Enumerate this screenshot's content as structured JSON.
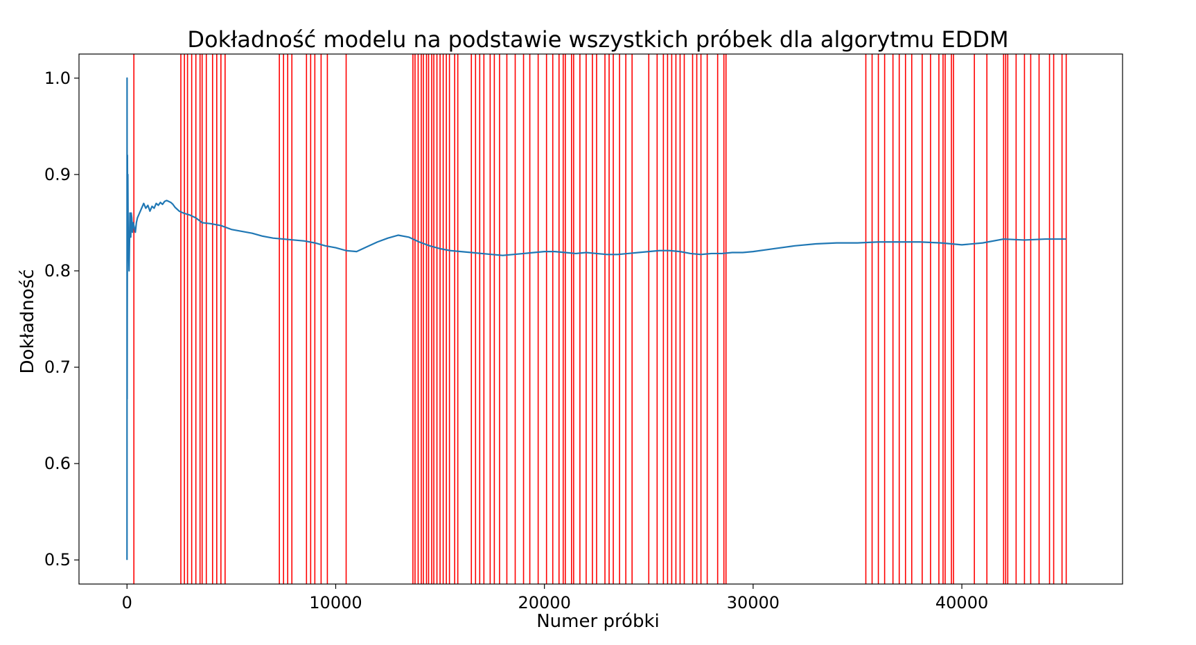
{
  "chart_data": {
    "type": "line",
    "title": "Dokładność modelu na podstawie wszystkich próbek dla algorytmu EDDM",
    "xlabel": "Numer próbki",
    "ylabel": "Dokładność",
    "xlim": [
      -2300,
      47700
    ],
    "ylim": [
      0.475,
      1.025
    ],
    "x_ticks": [
      0,
      10000,
      20000,
      30000,
      40000
    ],
    "x_tick_labels": [
      "0",
      "10000",
      "20000",
      "30000",
      "40000"
    ],
    "y_ticks": [
      0.5,
      0.6,
      0.7,
      0.8,
      0.9,
      1.0
    ],
    "y_tick_labels": [
      "0.5",
      "0.6",
      "0.7",
      "0.8",
      "0.9",
      "1.0"
    ],
    "grid": false,
    "line_color": "#1f77b4",
    "drift_line_color": "#ff0000",
    "series": [
      {
        "x": [
          0,
          3,
          6,
          10,
          15,
          20,
          25,
          30,
          40,
          50,
          60,
          75,
          90,
          100,
          120,
          140,
          160,
          180,
          200,
          230,
          260,
          300,
          350,
          400,
          450,
          500,
          600,
          700,
          800,
          900,
          1000,
          1100,
          1200,
          1300,
          1400,
          1500,
          1600,
          1700,
          1800,
          1900,
          2000,
          2100,
          2200,
          2300,
          2400,
          2500,
          2700,
          3000,
          3300,
          3600,
          4000,
          4500,
          5000,
          5500,
          6000,
          6500,
          7000,
          7500,
          8000,
          8500,
          9000,
          9500,
          10000,
          10500,
          11000,
          11500,
          12000,
          12500,
          13000,
          13500,
          14000,
          14500,
          15000,
          15500,
          16000,
          16500,
          17000,
          17500,
          18000,
          18500,
          19000,
          19500,
          20000,
          20500,
          21000,
          21500,
          22000,
          22500,
          23000,
          23500,
          24000,
          24500,
          25000,
          25500,
          26000,
          26500,
          27000,
          27500,
          28000,
          28500,
          29000,
          29500,
          30000,
          31000,
          32000,
          33000,
          34000,
          35000,
          36000,
          37000,
          38000,
          39000,
          40000,
          41000,
          42000,
          43000,
          44000,
          45000
        ],
        "y": [
          0.5,
          1.0,
          0.667,
          0.75,
          0.8,
          0.92,
          0.88,
          0.85,
          0.9,
          0.86,
          0.82,
          0.84,
          0.81,
          0.8,
          0.83,
          0.86,
          0.85,
          0.835,
          0.86,
          0.855,
          0.84,
          0.85,
          0.845,
          0.84,
          0.85,
          0.855,
          0.86,
          0.865,
          0.87,
          0.865,
          0.868,
          0.862,
          0.867,
          0.865,
          0.87,
          0.868,
          0.871,
          0.869,
          0.872,
          0.873,
          0.872,
          0.871,
          0.869,
          0.866,
          0.864,
          0.862,
          0.86,
          0.858,
          0.855,
          0.85,
          0.849,
          0.847,
          0.843,
          0.841,
          0.839,
          0.836,
          0.834,
          0.833,
          0.832,
          0.831,
          0.829,
          0.826,
          0.824,
          0.821,
          0.82,
          0.825,
          0.83,
          0.834,
          0.837,
          0.835,
          0.83,
          0.826,
          0.823,
          0.821,
          0.82,
          0.819,
          0.818,
          0.817,
          0.816,
          0.817,
          0.818,
          0.819,
          0.82,
          0.82,
          0.819,
          0.818,
          0.819,
          0.818,
          0.817,
          0.817,
          0.818,
          0.819,
          0.82,
          0.821,
          0.821,
          0.82,
          0.818,
          0.817,
          0.818,
          0.818,
          0.819,
          0.819,
          0.82,
          0.823,
          0.826,
          0.828,
          0.829,
          0.829,
          0.83,
          0.83,
          0.83,
          0.829,
          0.827,
          0.829,
          0.833,
          0.832,
          0.833,
          0.833
        ]
      }
    ],
    "drift_points": [
      330,
      2580,
      2750,
      2900,
      3100,
      3300,
      3500,
      3600,
      3800,
      4100,
      4300,
      4500,
      4700,
      7300,
      7500,
      7700,
      7900,
      8600,
      8800,
      9000,
      9300,
      9600,
      10500,
      13700,
      13800,
      13950,
      14100,
      14200,
      14350,
      14450,
      14600,
      14700,
      14850,
      15000,
      15150,
      15300,
      15450,
      15700,
      15850,
      16500,
      16700,
      16900,
      17100,
      17400,
      17600,
      17850,
      18200,
      18600,
      19000,
      19300,
      19700,
      20100,
      20400,
      20700,
      20900,
      21000,
      21300,
      21400,
      21700,
      22000,
      22300,
      22500,
      22900,
      23100,
      23300,
      23600,
      23900,
      24200,
      25000,
      25400,
      25700,
      25900,
      26100,
      26300,
      26500,
      26700,
      27100,
      27300,
      27500,
      27800,
      28300,
      28600,
      28700,
      35400,
      35700,
      36000,
      36300,
      36700,
      37000,
      37300,
      37600,
      38100,
      38500,
      38900,
      39100,
      39200,
      39500,
      39600,
      40600,
      41200,
      42000,
      42100,
      42200,
      42600,
      43000,
      43300,
      43700,
      44200,
      44400,
      44800,
      45000
    ]
  }
}
